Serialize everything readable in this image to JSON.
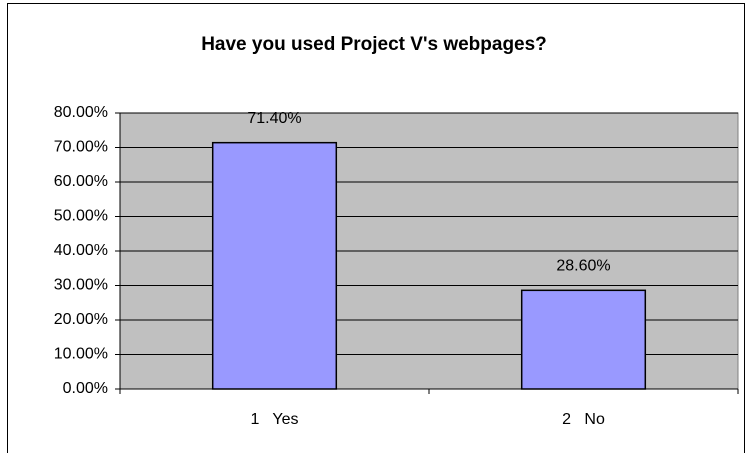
{
  "chart_data": {
    "type": "bar",
    "title": "Have you used Project V's webpages?",
    "categories": [
      "1   Yes",
      "2   No"
    ],
    "values": [
      71.4,
      28.6
    ],
    "value_labels": [
      "71.40%",
      "28.60%"
    ],
    "color": "#9999ff",
    "plot_background": "#c0c0c0",
    "ylim": [
      0,
      80
    ],
    "yticks": [
      {
        "value": 0,
        "label": "0.00%"
      },
      {
        "value": 10,
        "label": "10.00%"
      },
      {
        "value": 20,
        "label": "20.00%"
      },
      {
        "value": 30,
        "label": "30.00%"
      },
      {
        "value": 40,
        "label": "40.00%"
      },
      {
        "value": 50,
        "label": "50.00%"
      },
      {
        "value": 60,
        "label": "60.00%"
      },
      {
        "value": 70,
        "label": "70.00%"
      },
      {
        "value": 80,
        "label": "80.00%"
      }
    ],
    "grid": true
  }
}
